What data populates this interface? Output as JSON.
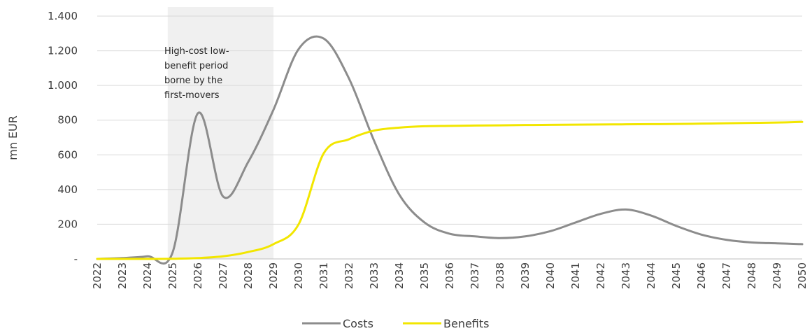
{
  "chart_data": {
    "type": "line",
    "ylabel": "mn EUR",
    "xlabel": "",
    "title": "",
    "ylim": [
      0,
      1400
    ],
    "y_ticks": [
      0,
      200,
      400,
      600,
      800,
      1000,
      1200,
      1400
    ],
    "y_tick_labels": [
      "-",
      "200",
      "400",
      "600",
      "800",
      "1.000",
      "1.200",
      "1.400"
    ],
    "x": [
      2022,
      2023,
      2024,
      2025,
      2026,
      2027,
      2028,
      2029,
      2030,
      2031,
      2032,
      2033,
      2034,
      2035,
      2036,
      2037,
      2038,
      2039,
      2040,
      2041,
      2042,
      2043,
      2044,
      2045,
      2046,
      2047,
      2048,
      2049,
      2050
    ],
    "x_tick_labels": [
      "2022",
      "2023",
      "2024",
      "2025",
      "2026",
      "2027",
      "2028",
      "2029",
      "2030",
      "2031",
      "2032",
      "2033",
      "2034",
      "2035",
      "2036",
      "2037",
      "2038",
      "2039",
      "2040",
      "2041",
      "2042",
      "2043",
      "2044",
      "2045",
      "2046",
      "2047",
      "2048",
      "2049",
      "2050"
    ],
    "series": [
      {
        "name": "Costs",
        "color": "#8c8c8c",
        "values": [
          0,
          5,
          15,
          40,
          840,
          360,
          560,
          860,
          1210,
          1270,
          1040,
          680,
          370,
          210,
          145,
          130,
          120,
          130,
          160,
          210,
          260,
          285,
          250,
          190,
          140,
          110,
          95,
          90,
          85
        ]
      },
      {
        "name": "Benefits",
        "color": "#f2e600",
        "values": [
          0,
          0,
          0,
          1,
          5,
          15,
          40,
          85,
          200,
          610,
          690,
          740,
          757,
          765,
          767,
          769,
          770,
          772,
          773,
          774,
          775,
          776,
          777,
          778,
          780,
          782,
          784,
          786,
          790
        ]
      }
    ],
    "shaded_region": {
      "from": 2024.8,
      "to": 2029,
      "color": "#f0f0f0",
      "label_lines": [
        "High-cost low-",
        "benefit period",
        "borne by the",
        "first-movers"
      ]
    },
    "grid": true,
    "legend_position": "bottom"
  }
}
